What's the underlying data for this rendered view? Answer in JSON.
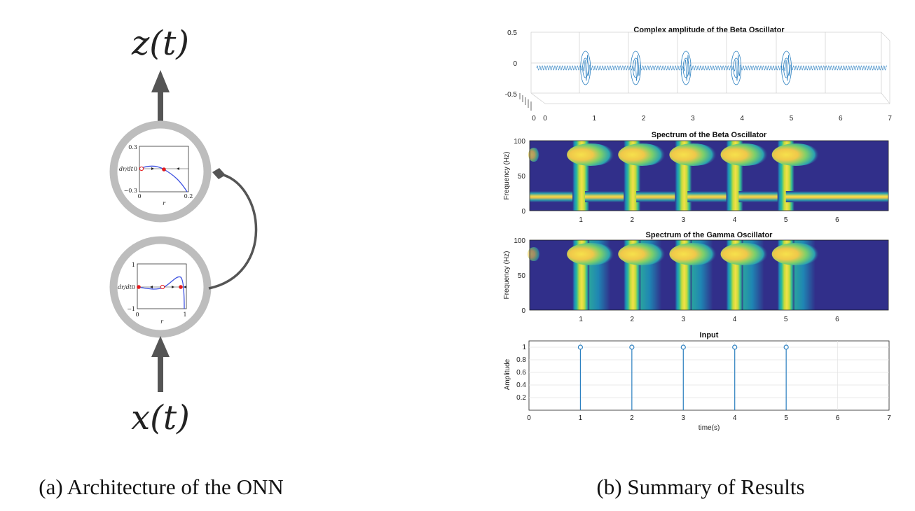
{
  "left": {
    "output_label": "z(t)",
    "input_label": "x(t)",
    "caption": "(a) Architecture of the ONN",
    "top_node": {
      "y_ticks": [
        "0.3",
        "0",
        "−0.3"
      ],
      "x_ticks": [
        "0",
        "0.2"
      ],
      "ylabel": "dr/dt",
      "xlabel": "r"
    },
    "bottom_node": {
      "y_ticks": [
        "1",
        "0",
        "−1"
      ],
      "x_ticks": [
        "0",
        "1"
      ],
      "ylabel": "dr/dt",
      "xlabel": "r"
    },
    "colors": {
      "ring": "#bdbdbd",
      "arrow": "#555555",
      "curve": "#3b4fe0",
      "fixed_point": "#e41a1c"
    }
  },
  "right": {
    "caption": "(b) Summary of Results",
    "panels": [
      {
        "title": "Complex amplitude of the Beta Oscillator",
        "y_ticks": [
          "0.5",
          "0",
          "-0.5"
        ],
        "x_ticks": [
          "0",
          "1",
          "2",
          "3",
          "4",
          "5",
          "6",
          "7"
        ],
        "depth_tick": "0"
      },
      {
        "title": "Spectrum of the Beta Oscillator",
        "ylabel": "Frequency (Hz)",
        "y_ticks": [
          "100",
          "50",
          "0"
        ],
        "x_ticks": [
          "1",
          "2",
          "3",
          "4",
          "5",
          "6"
        ]
      },
      {
        "title": "Spectrum of the Gamma Oscillator",
        "ylabel": "Frequency (Hz)",
        "y_ticks": [
          "100",
          "50",
          "0"
        ],
        "x_ticks": [
          "1",
          "2",
          "3",
          "4",
          "5",
          "6"
        ]
      },
      {
        "title": "Input",
        "ylabel": "Amplitude",
        "xlabel": "time(s)",
        "y_ticks": [
          "1",
          "0.8",
          "0.6",
          "0.4",
          "0.2"
        ],
        "x_ticks": [
          "0",
          "1",
          "2",
          "3",
          "4",
          "5",
          "6",
          "7"
        ]
      }
    ],
    "colors": {
      "line": "#2a7fc0",
      "heat_bg": "#312f8a",
      "heat_peak": "#f3e04a",
      "heat_mid": "#27b5a4"
    }
  },
  "chart_data": [
    {
      "type": "line",
      "title": "Complex amplitude of the Beta Oscillator",
      "xlim": [
        0,
        7
      ],
      "ylim": [
        -0.5,
        0.5
      ],
      "bursts_at": [
        1,
        2,
        3,
        4,
        5
      ]
    },
    {
      "type": "heatmap",
      "title": "Spectrum of the Beta Oscillator",
      "ylabel": "Frequency (Hz)",
      "xlim": [
        0,
        7
      ],
      "ylim": [
        0,
        100
      ],
      "base_frequency": 20,
      "burst_frequency": 80,
      "bursts_at": [
        1,
        2,
        3,
        4,
        5
      ]
    },
    {
      "type": "heatmap",
      "title": "Spectrum of the Gamma Oscillator",
      "ylabel": "Frequency (Hz)",
      "xlim": [
        0,
        7
      ],
      "ylim": [
        0,
        100
      ],
      "burst_frequency": 80,
      "bursts_at": [
        1,
        2,
        3,
        4,
        5
      ]
    },
    {
      "type": "scatter",
      "title": "Input",
      "xlabel": "time(s)",
      "ylabel": "Amplitude",
      "xlim": [
        0,
        7
      ],
      "ylim": [
        0,
        1.1
      ],
      "x": [
        1,
        2,
        3,
        4,
        5
      ],
      "y": [
        1,
        1,
        1,
        1,
        1
      ]
    }
  ]
}
